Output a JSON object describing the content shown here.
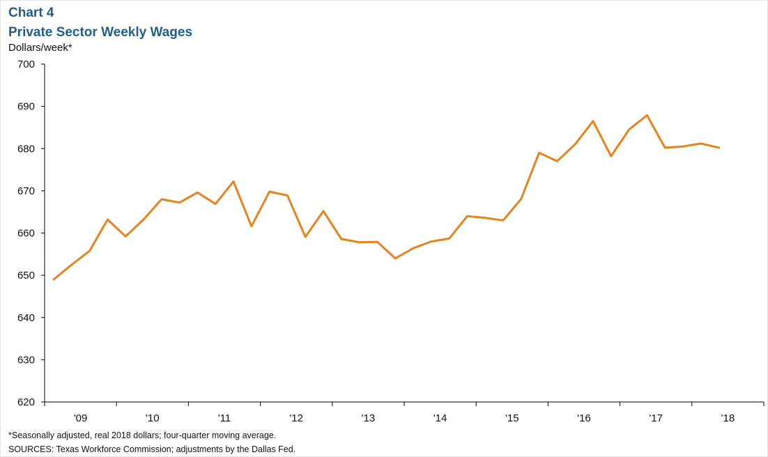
{
  "chart_data": {
    "type": "line",
    "chart_label": "Chart 4",
    "title": "Private Sector Weekly Wages",
    "ylabel": "Dollars/week*",
    "xlabel": "",
    "ylim": [
      620,
      700
    ],
    "yticks": [
      620,
      630,
      640,
      650,
      660,
      670,
      680,
      690,
      700
    ],
    "year_labels": [
      "'09",
      "'10",
      "'11",
      "'12",
      "'13",
      "'14",
      "'15",
      "'16",
      "'17",
      "'18"
    ],
    "grid": false,
    "legend": "none",
    "series": [
      {
        "color": "#e8831c",
        "values": [
          649.0,
          652.5,
          655.8,
          663.2,
          659.2,
          663.2,
          668.0,
          667.2,
          669.6,
          666.9,
          672.2,
          661.6,
          669.8,
          668.9,
          659.1,
          665.2,
          658.6,
          657.8,
          657.9,
          654.0,
          656.4,
          658.0,
          658.7,
          664.0,
          663.6,
          663.0,
          668.1,
          679.0,
          677.0,
          681.0,
          686.5,
          678.2,
          684.5,
          687.9,
          680.2,
          680.5,
          681.2,
          680.2
        ]
      }
    ],
    "footnote": "*Seasonally adjusted, real 2018 dollars; four-quarter moving average.",
    "sources": "SOURCES: Texas Workforce Commission; adjustments by the Dallas Fed."
  }
}
